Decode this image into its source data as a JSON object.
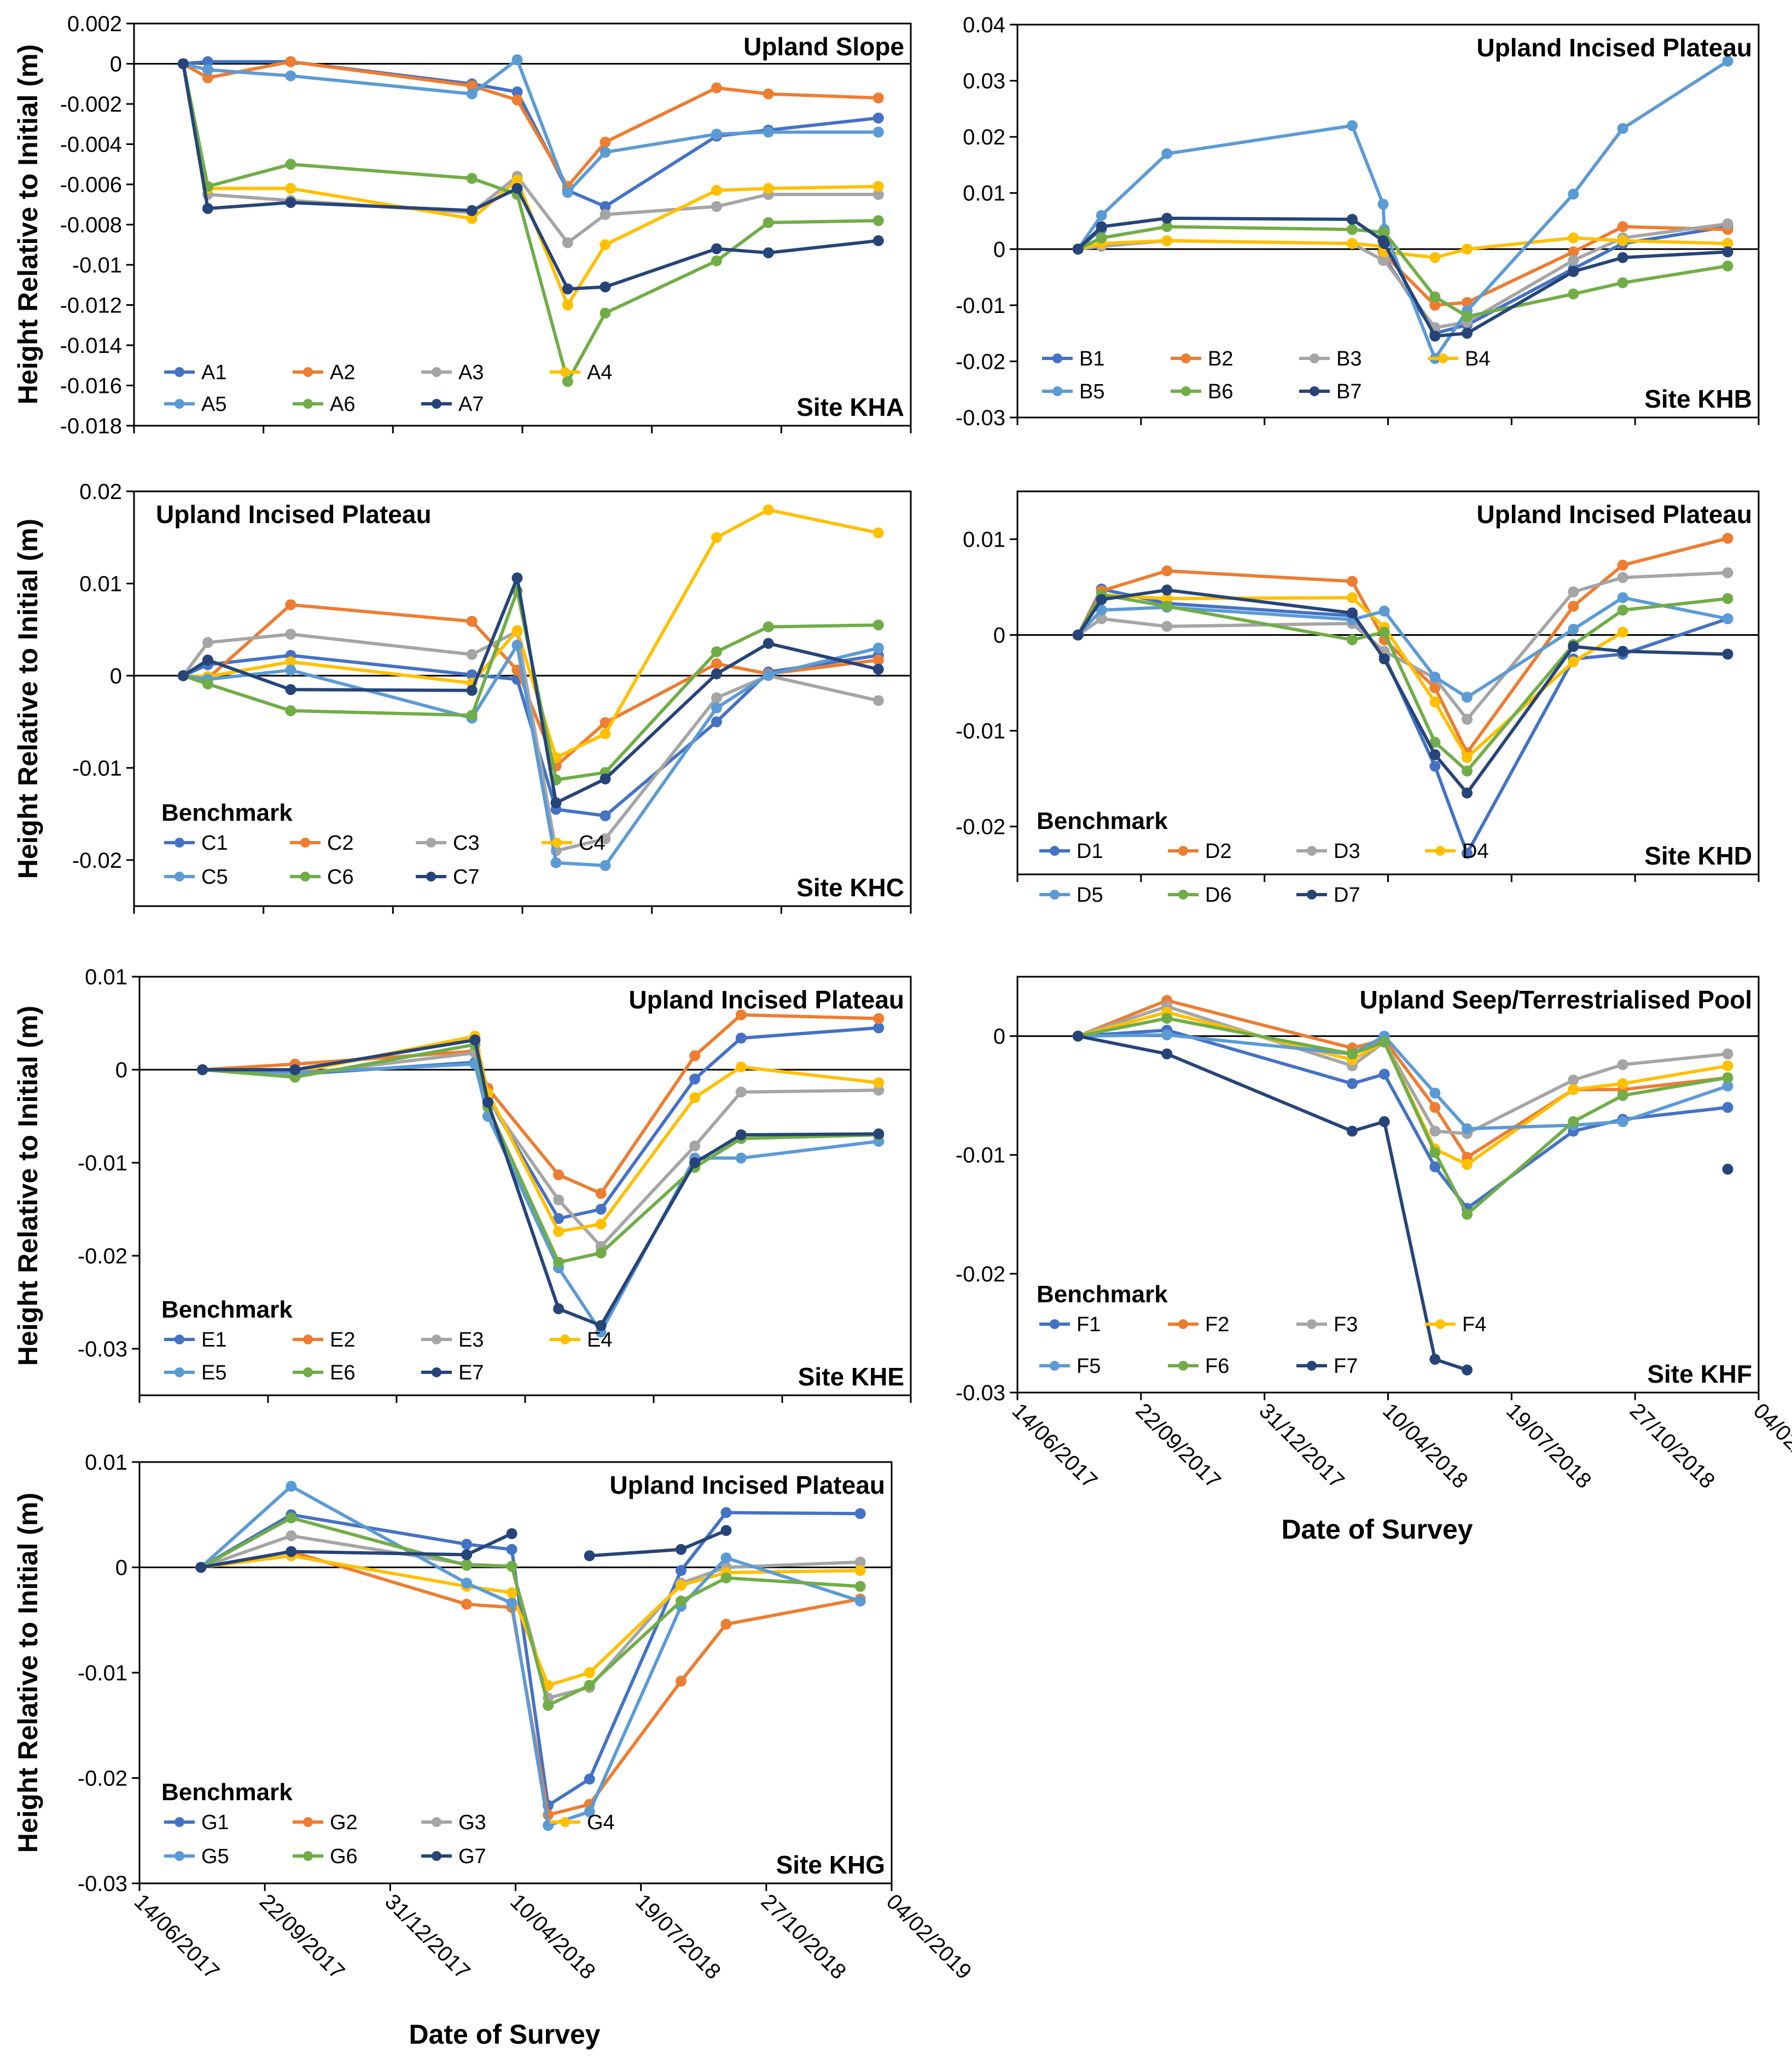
{
  "figure": {
    "ylabel": "Height Relative to Initial (m)",
    "xlabel": "Date of Survey",
    "x_ticks": [
      "14/06/2017",
      "22/09/2017",
      "31/12/2017",
      "10/04/2018",
      "19/07/2018",
      "27/10/2018",
      "04/02/2019"
    ]
  },
  "colors": {
    "s1": "#4472C4",
    "s2": "#ED7D31",
    "s3": "#A5A5A5",
    "s4": "#FFC000",
    "s5": "#5B9BD5",
    "s6": "#70AD47",
    "s7": "#264478"
  },
  "chart_data": [
    {
      "type": "line",
      "title": "Upland Slope",
      "site": "Site KHA",
      "legend_title": "",
      "xlabel": "",
      "ylabel": "Height Relative to Initial (m)",
      "ylim": [
        -0.018,
        0.002
      ],
      "yticks": [
        0.002,
        0,
        -0.002,
        -0.004,
        -0.006,
        -0.008,
        -0.01,
        -0.012,
        -0.014,
        -0.016,
        -0.018
      ],
      "ytick_labels": [
        "0.002",
        "0",
        "-0.002",
        "-0.004",
        "-0.006",
        "-0.008",
        "-0.01",
        "-0.012",
        "-0.014",
        "-0.016",
        "-0.018"
      ],
      "x": [
        "2017-07-22",
        "2017-08-10",
        "2017-10-13",
        "2018-03-02",
        "2018-04-06",
        "2018-05-15",
        "2018-06-13",
        "2018-09-07",
        "2018-10-17",
        "2019-01-10"
      ],
      "series": [
        {
          "name": "A1",
          "values": [
            0,
            0.0001,
            0.0001,
            -0.001,
            -0.0014,
            -0.0063,
            -0.0071,
            -0.0036,
            -0.0033,
            -0.0027
          ]
        },
        {
          "name": "A2",
          "values": [
            0,
            -0.0007,
            0.0001,
            -0.0011,
            -0.0018,
            -0.0061,
            -0.0039,
            -0.0012,
            -0.0015,
            -0.0017
          ]
        },
        {
          "name": "A3",
          "values": [
            0,
            -0.0065,
            -0.0068,
            -0.0074,
            -0.0056,
            -0.0089,
            -0.0075,
            -0.0071,
            -0.0065,
            -0.0065
          ]
        },
        {
          "name": "A4",
          "values": [
            0,
            -0.0062,
            -0.0062,
            -0.0077,
            -0.0058,
            -0.012,
            -0.009,
            -0.0063,
            -0.0062,
            -0.0061
          ]
        },
        {
          "name": "A5",
          "values": [
            0,
            -0.0003,
            -0.0006,
            -0.0015,
            0.0002,
            -0.0064,
            -0.0044,
            -0.0035,
            -0.0034,
            -0.0034
          ]
        },
        {
          "name": "A6",
          "values": [
            0,
            -0.0061,
            -0.005,
            -0.0057,
            -0.0065,
            -0.0158,
            -0.0124,
            -0.0098,
            -0.0079,
            -0.0078
          ]
        },
        {
          "name": "A7",
          "values": [
            0,
            -0.0072,
            -0.0069,
            -0.0073,
            -0.0062,
            -0.0112,
            -0.0111,
            -0.0092,
            -0.0094,
            -0.0088
          ]
        }
      ]
    },
    {
      "type": "line",
      "title": "Upland Incised Plateau",
      "site": "Site KHB",
      "legend_title": "",
      "xlabel": "",
      "ylabel": "",
      "ylim": [
        -0.03,
        0.04
      ],
      "yticks": [
        0.04,
        0.03,
        0.02,
        0.01,
        0,
        -0.01,
        -0.02,
        -0.03
      ],
      "ytick_labels": [
        "0.04",
        "0.03",
        "0.02",
        "0.01",
        "0",
        "-0.01",
        "-0.02",
        "-0.03"
      ],
      "x": [
        "2017-08-02",
        "2017-08-21",
        "2017-10-13",
        "2018-03-12",
        "2018-04-06",
        "2018-04-07",
        "2018-05-18",
        "2018-06-13",
        "2018-09-07",
        "2018-10-17",
        "2019-01-10"
      ],
      "series": [
        {
          "name": "B1",
          "values": [
            0,
            0.0036,
            null,
            null,
            -0.0005,
            -0.0015,
            -0.015,
            -0.0135,
            -0.0035,
            0.001,
            0.004
          ]
        },
        {
          "name": "B2",
          "values": [
            0,
            0.002,
            null,
            null,
            -0.0005,
            -0.001,
            -0.01,
            -0.0095,
            -0.0005,
            0.004,
            0.0035
          ]
        },
        {
          "name": "B3",
          "values": [
            0,
            0.0005,
            0.0015,
            0.001,
            -0.002,
            -0.002,
            -0.014,
            -0.013,
            -0.002,
            0.002,
            0.0045
          ]
        },
        {
          "name": "B4",
          "values": [
            0,
            0.001,
            0.0015,
            0.001,
            0.0005,
            -0.0005,
            -0.0015,
            0,
            0.002,
            0.0015,
            0.001
          ]
        },
        {
          "name": "B5",
          "values": [
            0,
            0.006,
            0.017,
            0.022,
            0.008,
            0.0035,
            -0.0195,
            -0.011,
            0.0098,
            0.0215,
            0.0335
          ]
        },
        {
          "name": "B6",
          "values": [
            0,
            0.002,
            0.004,
            0.0035,
            0.003,
            0.003,
            -0.0085,
            -0.012,
            -0.008,
            -0.006,
            -0.003
          ]
        },
        {
          "name": "B7",
          "values": [
            0,
            0.004,
            0.0055,
            0.0053,
            0.0015,
            0.001,
            -0.0155,
            -0.015,
            -0.004,
            -0.0015,
            -0.0005
          ]
        }
      ]
    },
    {
      "type": "line",
      "title": "Upland Incised Plateau",
      "site": "Site KHC",
      "legend_title": "Benchmark",
      "xlabel": "",
      "ylabel": "Height Relative to Initial (m)",
      "ylim": [
        -0.025,
        0.02
      ],
      "yticks": [
        0.02,
        0.01,
        0,
        -0.01,
        -0.02
      ],
      "ytick_labels": [
        "0.02",
        "0.01",
        "0",
        "-0.01",
        "-0.02"
      ],
      "x": [
        "2017-07-22",
        "2017-08-10",
        "2017-10-13",
        "2018-03-02",
        "2018-04-06",
        "2018-05-06",
        "2018-06-13",
        "2018-09-07",
        "2018-10-17",
        "2019-01-10"
      ],
      "series": [
        {
          "name": "C1",
          "values": [
            0,
            0.0012,
            0.0022,
            0.0001,
            -0.0004,
            -0.0145,
            -0.0152,
            -0.005,
            0.0004,
            0.0022
          ]
        },
        {
          "name": "C2",
          "values": [
            0,
            -0.0003,
            0.0077,
            0.0059,
            0.0006,
            -0.0098,
            -0.0051,
            0.0013,
            0.0002,
            0.0017
          ]
        },
        {
          "name": "C3",
          "values": [
            0,
            0.0036,
            0.0045,
            0.0023,
            0.0048,
            -0.019,
            -0.0177,
            -0.0024,
            0,
            -0.0027
          ]
        },
        {
          "name": "C4",
          "values": [
            0,
            -0.0001,
            0.0015,
            -0.0008,
            0.0049,
            -0.0089,
            -0.0063,
            0.015,
            0.018,
            0.0155
          ]
        },
        {
          "name": "C5",
          "values": [
            0,
            -0.0004,
            0.0006,
            -0.0046,
            0.0033,
            -0.0203,
            -0.0206,
            -0.0035,
            0.0001,
            0.003
          ]
        },
        {
          "name": "C6",
          "values": [
            0,
            -0.0009,
            -0.0038,
            -0.0043,
            0.0092,
            -0.0113,
            -0.0105,
            0.0026,
            0.0053,
            0.0055
          ]
        },
        {
          "name": "C7",
          "values": [
            0,
            0.0017,
            -0.0015,
            -0.0016,
            0.0106,
            -0.0138,
            -0.0112,
            0.0002,
            0.0035,
            0.0007
          ]
        }
      ]
    },
    {
      "type": "line",
      "title": "Upland Incised Plateau",
      "site": "Site KHD",
      "legend_title": "Benchmark",
      "xlabel": "",
      "ylabel": "",
      "ylim": [
        -0.025,
        0.015
      ],
      "yticks": [
        0.01,
        0,
        -0.01,
        -0.02
      ],
      "ytick_labels": [
        "0.01",
        "0",
        "-0.01",
        "-0.02"
      ],
      "x": [
        "2017-08-02",
        "2017-08-21",
        "2017-10-13",
        "2018-03-12",
        "2018-04-07",
        "2018-05-18",
        "2018-06-13",
        "2018-09-07",
        "2018-10-17",
        "2019-01-10"
      ],
      "series": [
        {
          "name": "D1",
          "values": [
            0,
            0.0048,
            0.0033,
            0.002,
            -0.0022,
            -0.0137,
            -0.0228,
            -0.0025,
            -0.002,
            0.0017
          ]
        },
        {
          "name": "D2",
          "values": [
            0,
            0.0046,
            0.0067,
            0.0056,
            -0.0005,
            -0.0055,
            -0.0123,
            0.003,
            0.0073,
            0.0101
          ]
        },
        {
          "name": "D3",
          "values": [
            0,
            0.0017,
            0.0009,
            0.0012,
            -0.0017,
            -0.0045,
            -0.0088,
            0.0045,
            0.006,
            0.0065
          ]
        },
        {
          "name": "D4",
          "values": [
            0,
            0.0042,
            0.0038,
            0.0039,
            0.0008,
            -0.007,
            -0.0128,
            -0.0028,
            0.0003,
            null
          ]
        },
        {
          "name": "D5",
          "values": [
            0,
            0.0026,
            0.0029,
            0.0016,
            0.0025,
            -0.0044,
            -0.0065,
            0.0006,
            0.0039,
            0.0017
          ]
        },
        {
          "name": "D6",
          "values": [
            0,
            0.0042,
            0.003,
            -0.0005,
            0.0003,
            -0.0112,
            -0.0142,
            -0.001,
            0.0026,
            0.0038
          ]
        },
        {
          "name": "D7",
          "values": [
            0,
            0.0037,
            0.0047,
            0.0023,
            -0.0025,
            -0.0125,
            -0.0165,
            -0.0012,
            -0.0017,
            -0.002
          ]
        }
      ]
    },
    {
      "type": "line",
      "title": "Upland Incised Plateau",
      "site": "Site KHE",
      "legend_title": "Benchmark",
      "xlabel": "",
      "ylabel": "Height Relative to Initial (m)",
      "ylim": [
        -0.035,
        0.01
      ],
      "yticks": [
        0.01,
        0,
        -0.01,
        -0.02,
        -0.03
      ],
      "ytick_labels": [
        "0.01",
        "0",
        "-0.01",
        "-0.02",
        "-0.03"
      ],
      "x": [
        "2017-08-02",
        "2017-10-13",
        "2018-03-02",
        "2018-03-12",
        "2018-05-06",
        "2018-06-08",
        "2018-08-20",
        "2018-09-25",
        "2019-01-10"
      ],
      "series": [
        {
          "name": "E1",
          "values": [
            0,
            -0.0005,
            0.0008,
            -0.003,
            -0.016,
            -0.015,
            -0.001,
            0.0034,
            0.0045
          ]
        },
        {
          "name": "E2",
          "values": [
            0,
            0.0006,
            0.002,
            -0.002,
            -0.0113,
            -0.0133,
            0.0015,
            0.0059,
            0.0055
          ]
        },
        {
          "name": "E3",
          "values": [
            0,
            -0.0005,
            0.0018,
            -0.0032,
            -0.014,
            -0.019,
            -0.0082,
            -0.0024,
            -0.0022
          ]
        },
        {
          "name": "E4",
          "values": [
            0,
            -0.0003,
            0.0036,
            -0.0025,
            -0.0174,
            -0.0166,
            -0.003,
            0.0003,
            -0.0014
          ]
        },
        {
          "name": "E5",
          "values": [
            0,
            -0.0003,
            0.0006,
            -0.005,
            -0.0213,
            -0.0282,
            -0.0095,
            -0.0095,
            -0.0077
          ]
        },
        {
          "name": "E6",
          "values": [
            0,
            -0.0008,
            0.0027,
            -0.004,
            -0.0207,
            -0.0197,
            -0.0105,
            -0.0074,
            -0.007
          ]
        },
        {
          "name": "E7",
          "values": [
            0,
            0,
            0.0032,
            -0.0035,
            -0.0257,
            -0.0275,
            -0.01,
            -0.007,
            -0.0069
          ]
        }
      ]
    },
    {
      "type": "line",
      "title": "Upland Seep/Terrestrialised Pool",
      "site": "Site KHF",
      "legend_title": "Benchmark",
      "xlabel": "Date of Survey",
      "ylabel": "",
      "ylim": [
        -0.03,
        0.005
      ],
      "yticks": [
        0,
        -0.01,
        -0.02,
        -0.03
      ],
      "ytick_labels": [
        "0",
        "-0.01",
        "-0.02",
        "-0.03"
      ],
      "x": [
        "2017-08-02",
        "2017-10-13",
        "2018-03-12",
        "2018-04-07",
        "2018-05-18",
        "2018-06-13",
        "2018-09-07",
        "2018-10-17",
        "2019-01-10"
      ],
      "series": [
        {
          "name": "F1",
          "values": [
            0,
            0.0005,
            -0.004,
            -0.0032,
            -0.011,
            -0.0145,
            -0.008,
            -0.007,
            -0.006
          ]
        },
        {
          "name": "F2",
          "values": [
            0,
            0.003,
            -0.001,
            -0.0003,
            -0.006,
            -0.0102,
            -0.0045,
            -0.0045,
            -0.0035
          ]
        },
        {
          "name": "F3",
          "values": [
            0,
            0.0025,
            -0.0025,
            -0.0005,
            -0.008,
            -0.0082,
            -0.0037,
            -0.0024,
            -0.0015
          ]
        },
        {
          "name": "F4",
          "values": [
            0,
            0.002,
            -0.002,
            -0.0005,
            -0.0095,
            -0.0108,
            -0.0045,
            -0.004,
            -0.0025
          ]
        },
        {
          "name": "F5",
          "values": [
            0,
            0.0001,
            -0.0015,
            0,
            -0.0048,
            -0.0078,
            -0.0075,
            -0.0072,
            -0.0042
          ]
        },
        {
          "name": "F6",
          "values": [
            0,
            0.0015,
            -0.0015,
            -0.0005,
            -0.0098,
            -0.015,
            -0.0072,
            -0.005,
            -0.0035
          ]
        },
        {
          "name": "F7",
          "values": [
            0,
            -0.0015,
            -0.008,
            -0.0072,
            -0.0272,
            -0.0281,
            null,
            null,
            -0.0112
          ]
        }
      ]
    },
    {
      "type": "line",
      "title": "Upland Incised Plateau",
      "site": "Site KHG",
      "legend_title": "Benchmark",
      "xlabel": "Date of Survey",
      "ylabel": "Height Relative to Initial (m)",
      "ylim": [
        -0.03,
        0.01
      ],
      "yticks": [
        0.01,
        0,
        -0.01,
        -0.02,
        -0.03
      ],
      "ytick_labels": [
        "0.01",
        "0",
        "-0.01",
        "-0.02",
        "-0.03"
      ],
      "x": [
        "2017-08-02",
        "2017-10-13",
        "2018-03-02",
        "2018-04-07",
        "2018-05-06",
        "2018-06-08",
        "2018-08-20",
        "2018-09-25",
        "2019-01-10"
      ],
      "series": [
        {
          "name": "G1",
          "values": [
            0,
            0.005,
            0.0022,
            0.0017,
            -0.0226,
            -0.0201,
            -0.0003,
            0.0052,
            0.0051
          ]
        },
        {
          "name": "G2",
          "values": [
            0,
            0.0015,
            -0.0035,
            -0.0038,
            -0.0235,
            -0.0225,
            -0.0108,
            -0.0054,
            -0.003
          ]
        },
        {
          "name": "G3",
          "values": [
            0,
            0.003,
            0.0003,
            0.0001,
            -0.0124,
            -0.0114,
            -0.0015,
            0,
            0.0005
          ]
        },
        {
          "name": "G4",
          "values": [
            0,
            0.0011,
            -0.0018,
            -0.0024,
            -0.0112,
            -0.01,
            -0.0017,
            -0.0005,
            -0.0003
          ]
        },
        {
          "name": "G5",
          "values": [
            0,
            0.0077,
            -0.0015,
            -0.0034,
            -0.0245,
            -0.0232,
            -0.0037,
            0.0009,
            -0.0032
          ]
        },
        {
          "name": "G6",
          "values": [
            0,
            0.0047,
            0.0002,
            0.0001,
            -0.0131,
            -0.0112,
            -0.0032,
            -0.001,
            -0.0018
          ]
        },
        {
          "name": "G7",
          "values": [
            0,
            0.0015,
            0.0012,
            0.0032,
            null,
            0.0011,
            0.0017,
            0.0035,
            null
          ]
        }
      ]
    }
  ]
}
